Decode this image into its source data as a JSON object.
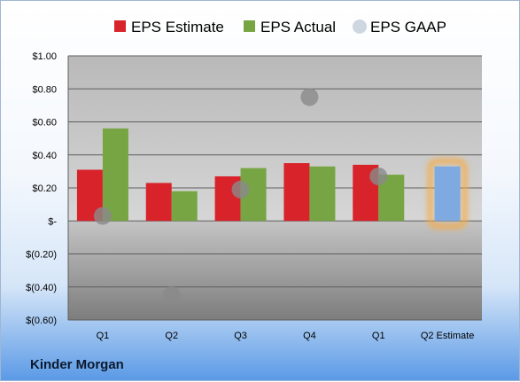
{
  "chart_data": {
    "type": "bar",
    "categories": [
      "Q1",
      "Q2",
      "Q3",
      "Q4",
      "Q1",
      "Q2 Estimate"
    ],
    "series": [
      {
        "name": "EPS Estimate",
        "values": [
          0.31,
          0.23,
          0.27,
          0.35,
          0.34,
          null
        ],
        "color": "#d8232a"
      },
      {
        "name": "EPS Actual",
        "values": [
          0.56,
          0.18,
          0.32,
          0.33,
          0.28,
          null
        ],
        "color": "#77a543"
      },
      {
        "name": "EPS GAAP",
        "values": [
          0.03,
          -0.45,
          0.19,
          0.75,
          0.27,
          null
        ],
        "color": "#8a8a8a",
        "style": "marker"
      }
    ],
    "highlight": {
      "category": "Q2 Estimate",
      "value": 0.33,
      "color": "#7ea9e1",
      "glow": "#f7a940"
    },
    "yticks": [
      1.0,
      0.8,
      0.6,
      0.4,
      0.2,
      0,
      -0.2,
      -0.4,
      -0.6
    ],
    "ytick_labels": [
      "$1.00",
      "$0.80",
      "$0.60",
      "$0.40",
      "$0.20",
      "$-",
      "$(0.20)",
      "$(0.40)",
      "$(0.60)"
    ],
    "ylim": [
      -0.6,
      1.0
    ],
    "grid": true,
    "legend_position": "top"
  },
  "footer": {
    "company": "Kinder Morgan"
  }
}
